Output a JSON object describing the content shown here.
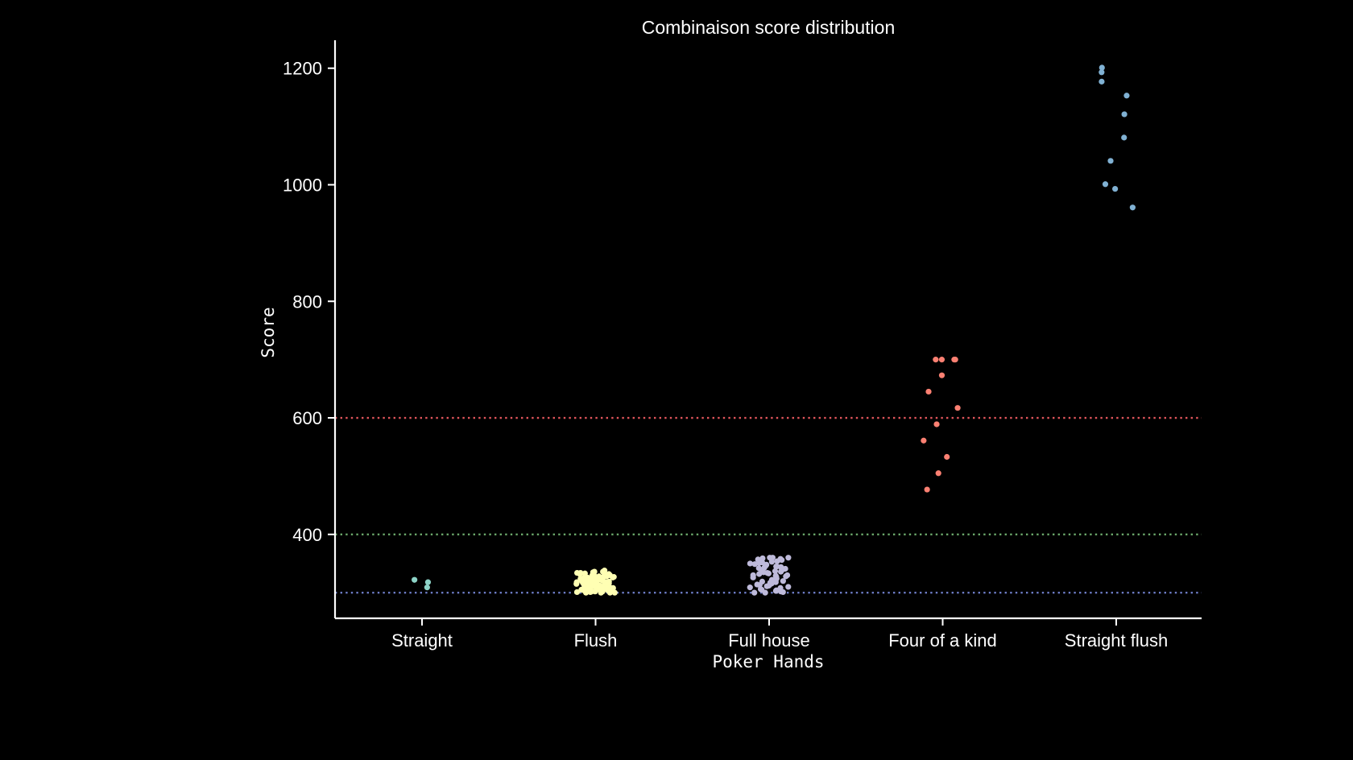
{
  "chart_data": {
    "type": "scatter",
    "subtype": "strip",
    "title": "Combinaison score distribution",
    "xlabel": "Poker Hands",
    "ylabel": "Score",
    "categories": [
      "Straight",
      "Flush",
      "Full house",
      "Four of a kind",
      "Straight flush"
    ],
    "ylim": [
      256,
      1248
    ],
    "yticks": [
      400,
      600,
      800,
      1000,
      1200
    ],
    "grid": false,
    "legend": "none",
    "background": "#000000",
    "series": [
      {
        "category": "Straight",
        "color": "#8dd3c7",
        "values": [
          318,
          322,
          309
        ]
      },
      {
        "category": "Flush",
        "color": "#ffffb3",
        "values": [
          300,
          302,
          304,
          306,
          308,
          310,
          312,
          314,
          316,
          318,
          320,
          322,
          324,
          326,
          328,
          330,
          332,
          334,
          336,
          338,
          301,
          303,
          305,
          307,
          309,
          311,
          313,
          315,
          317,
          319,
          321,
          323,
          325,
          327,
          329,
          331,
          333,
          335,
          300,
          304,
          308,
          312,
          316,
          320,
          324,
          328,
          332,
          336,
          302,
          306,
          310,
          314,
          318,
          322,
          326,
          330,
          334,
          300,
          305,
          310,
          315,
          320,
          325,
          330,
          303,
          307,
          311,
          315,
          319,
          323,
          327,
          301,
          306,
          311,
          316,
          321,
          326,
          302,
          308,
          314,
          320,
          304,
          312,
          318,
          300,
          309
        ]
      },
      {
        "category": "Full house",
        "color": "#bebada",
        "values": [
          300,
          302,
          304,
          306,
          308,
          310,
          312,
          314,
          316,
          318,
          320,
          322,
          324,
          326,
          328,
          330,
          332,
          334,
          336,
          338,
          340,
          342,
          344,
          346,
          348,
          350,
          352,
          354,
          356,
          358,
          360,
          360,
          301,
          305,
          309,
          313,
          317,
          321,
          325,
          329,
          333,
          337,
          341,
          345,
          349,
          353,
          357,
          303,
          311,
          319,
          327,
          335,
          343,
          351,
          359,
          300,
          315,
          330,
          345,
          360
        ]
      },
      {
        "category": "Four of a kind",
        "color": "#fb8072",
        "values": [
          700,
          700,
          700,
          700,
          673,
          645,
          617,
          589,
          561,
          533,
          505,
          477
        ]
      },
      {
        "category": "Straight flush",
        "color": "#80b1d3",
        "values": [
          1201,
          1193,
          1177,
          1153,
          1121,
          1081,
          1041,
          1001,
          993,
          961
        ]
      }
    ],
    "reference_lines": [
      {
        "y": 300,
        "color": "#6c7bc4",
        "style": "dotted"
      },
      {
        "y": 400,
        "color": "#6aa76a",
        "style": "dotted"
      },
      {
        "y": 600,
        "color": "#e0555b",
        "style": "dotted"
      }
    ]
  }
}
